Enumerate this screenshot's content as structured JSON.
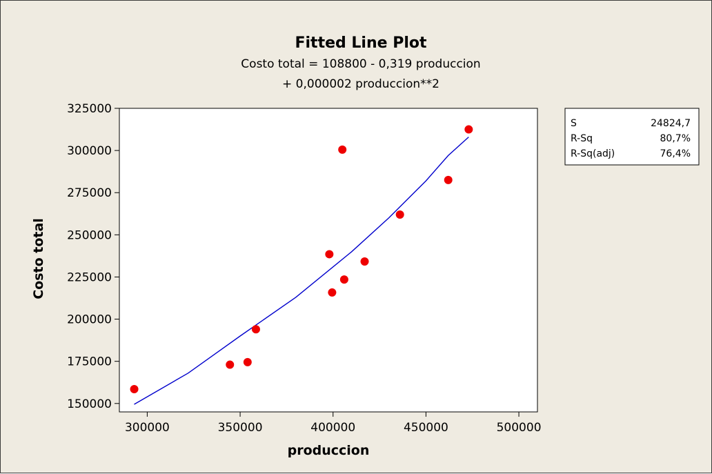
{
  "chart_data": {
    "type": "scatter",
    "title": "Fitted Line Plot",
    "subtitle_lines": [
      "Costo total =  108800 - 0,319 produccion",
      "+ 0,000002 produccion**2"
    ],
    "xlabel": "produccion",
    "ylabel": "Costo total",
    "xlim": [
      285000,
      510000
    ],
    "ylim": [
      145000,
      325000
    ],
    "xticks": [
      300000,
      350000,
      400000,
      450000,
      500000
    ],
    "yticks": [
      150000,
      175000,
      200000,
      225000,
      250000,
      275000,
      300000,
      325000
    ],
    "grid": false,
    "points": [
      {
        "x": 293000,
        "y": 158500
      },
      {
        "x": 344500,
        "y": 173000
      },
      {
        "x": 354000,
        "y": 174500
      },
      {
        "x": 358500,
        "y": 194000
      },
      {
        "x": 398000,
        "y": 238500
      },
      {
        "x": 399500,
        "y": 215800
      },
      {
        "x": 405000,
        "y": 300500
      },
      {
        "x": 406000,
        "y": 223500
      },
      {
        "x": 417000,
        "y": 234200
      },
      {
        "x": 436000,
        "y": 262000
      },
      {
        "x": 462000,
        "y": 282500
      },
      {
        "x": 473000,
        "y": 312500
      }
    ],
    "fit_line": {
      "x": [
        293000,
        322000,
        350000,
        380000,
        410000,
        430000,
        450000,
        462000,
        473000
      ],
      "y": [
        149500,
        168000,
        190000,
        213000,
        240000,
        260000,
        282000,
        297000,
        308000
      ]
    },
    "point_color": "#ee0000",
    "line_color": "#0000cc",
    "stats": [
      {
        "label": "S",
        "value": "24824,7"
      },
      {
        "label": "R-Sq",
        "value": "80,7%"
      },
      {
        "label": "R-Sq(adj)",
        "value": "76,4%"
      }
    ]
  }
}
